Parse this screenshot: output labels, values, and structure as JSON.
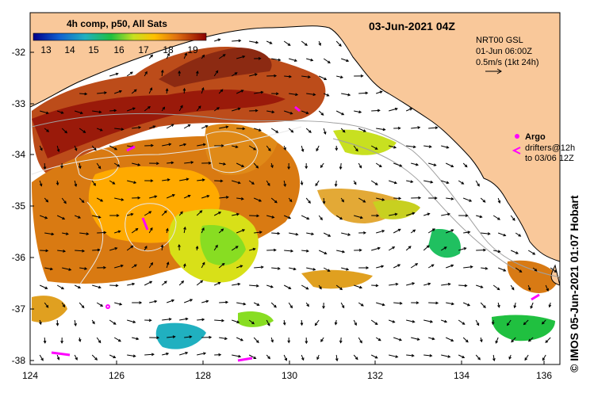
{
  "title": "03-Jun-2021 04Z",
  "colorbar": {
    "title": "4h comp, p50, All Sats",
    "ticks": [
      "13",
      "14",
      "15",
      "16",
      "17",
      "18",
      "19"
    ]
  },
  "currents": {
    "source": "NRT00 GSL",
    "time": "01-Jun 06:00Z",
    "scale": "0.5m/s (1kt 24h)"
  },
  "legend": {
    "argo": "Argo",
    "drifters_line1": "drifters@12h",
    "drifters_line2": "to 03/06 12Z"
  },
  "axes": {
    "lon_ticks": [
      "124",
      "126",
      "128",
      "130",
      "132",
      "134",
      "136"
    ],
    "lat_ticks": [
      "-32",
      "-33",
      "-34",
      "-35",
      "-36",
      "-37",
      "-38"
    ]
  },
  "credit": "© IMOS 05-Jun-2021 01:07 Hobart",
  "colors": {
    "land": "#f9c89a",
    "coast": "#000000",
    "sst_warm": "#9a1a0a",
    "sst_mid": "#e0a020",
    "sst_cool": "#80d020",
    "argo": "#ff00ff"
  }
}
